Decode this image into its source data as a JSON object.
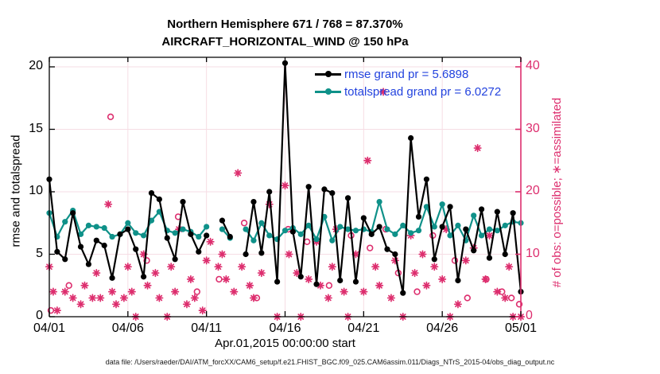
{
  "title": {
    "line1": "Northern Hemisphere 671 / 768 = 87.370%",
    "line2": "AIRCRAFT_HORIZONTAL_WIND @ 150 hPa"
  },
  "legend": {
    "items": [
      {
        "label": "rmse grand pr = 5.6898",
        "series": "rmse"
      },
      {
        "label": "totalspread grand pr = 6.0272",
        "series": "totalspread"
      }
    ]
  },
  "axes": {
    "left": {
      "label": "rmse and totalspread",
      "tick_values": [
        0,
        5,
        10,
        15,
        20
      ]
    },
    "right": {
      "label": "# of obs: o=possible; ∗=assimilated",
      "tick_values": [
        0,
        10,
        20,
        30,
        40
      ]
    },
    "x": {
      "label": "Apr.01,2015 00:00:00 start",
      "tick_days": [
        0,
        5,
        10,
        15,
        20,
        25,
        30
      ],
      "tick_labels": [
        "04/01",
        "04/06",
        "04/11",
        "04/16",
        "04/21",
        "04/26",
        "05/01"
      ]
    }
  },
  "footer": {
    "text": "data file: /Users/raeder/DAI/ATM_forcXX/CAM6_setup/f.e21.FHIST_BGC.f09_025.CAM6assim.011/Diags_NTrS_2015-04/obs_diag_output.nc"
  },
  "colors": {
    "rmse": "#000000",
    "totalspread": "#0f9189",
    "obs": "#dd2e6e",
    "legend_text": "#2343de",
    "grid": "#f6dde4",
    "axis": "#000000"
  },
  "chart_data": {
    "type": "line",
    "x_unit": "days since Apr.01,2015 00:00:00 (half-day sampling)",
    "ylim_left": [
      0,
      20
    ],
    "ylim_right": [
      0,
      40
    ],
    "grid": true,
    "legend_position": "top-center",
    "x_days": [
      0,
      0.5,
      1,
      1.5,
      2,
      2.5,
      3,
      3.5,
      4,
      4.5,
      5,
      5.5,
      6,
      6.5,
      7,
      7.5,
      8,
      8.5,
      9,
      9.5,
      10,
      10.5,
      11,
      11.5,
      12,
      12.5,
      13,
      13.5,
      14,
      14.5,
      15,
      15.5,
      16,
      16.5,
      17,
      17.5,
      18,
      18.5,
      19,
      19.5,
      20,
      20.5,
      21,
      21.5,
      22,
      22.5,
      23,
      23.5,
      24,
      24.5,
      25,
      25.5,
      26,
      26.5,
      27,
      27.5,
      28,
      28.5,
      29,
      29.5,
      30
    ],
    "series": [
      {
        "name": "rmse",
        "grand_value": 5.6898,
        "color": "#000000",
        "values": [
          11.0,
          5.2,
          4.6,
          8.3,
          5.6,
          4.2,
          6.1,
          5.7,
          3.1,
          6.6,
          7.0,
          5.4,
          3.2,
          9.9,
          9.4,
          6.3,
          4.6,
          9.2,
          6.6,
          5.2,
          6.5,
          null,
          7.7,
          6.4,
          null,
          5.0,
          9.2,
          5.1,
          10.0,
          2.8,
          20.3,
          6.8,
          3.2,
          10.4,
          2.6,
          10.2,
          9.9,
          2.9,
          9.5,
          2.8,
          7.9,
          6.6,
          7.2,
          5.4,
          5.0,
          1.9,
          14.3,
          8.0,
          11.0,
          4.6,
          7.2,
          8.8,
          2.9,
          7.0,
          5.3,
          8.6,
          4.7,
          8.4,
          5.0,
          8.3,
          2.0
        ]
      },
      {
        "name": "totalspread",
        "grand_value": 6.0272,
        "color": "#0f9189",
        "values": [
          8.3,
          6.4,
          7.6,
          8.5,
          6.6,
          7.3,
          7.2,
          7.1,
          6.4,
          6.6,
          7.5,
          6.7,
          6.5,
          7.7,
          8.4,
          6.9,
          6.7,
          7.0,
          6.8,
          6.4,
          7.2,
          null,
          7.0,
          6.3,
          null,
          7.0,
          6.1,
          7.5,
          6.5,
          6.2,
          6.9,
          7.1,
          6.6,
          7.3,
          6.2,
          8.0,
          6.1,
          7.2,
          7.0,
          6.9,
          7.0,
          6.8,
          9.2,
          7.0,
          6.6,
          7.3,
          6.7,
          6.9,
          8.8,
          7.2,
          9.0,
          6.5,
          7.3,
          6.1,
          8.1,
          6.5,
          7.0,
          6.9,
          7.3,
          7.6,
          7.5
        ]
      }
    ],
    "scatter": [
      {
        "name": "assimilated_obs_count",
        "marker": "asterisk",
        "color": "#dd2e6e",
        "axis": "right",
        "points": [
          [
            0.0,
            8
          ],
          [
            0.25,
            4
          ],
          [
            0.5,
            1
          ],
          [
            1.0,
            4
          ],
          [
            1.5,
            3
          ],
          [
            2.0,
            2
          ],
          [
            2.25,
            5
          ],
          [
            2.75,
            3
          ],
          [
            3.0,
            7
          ],
          [
            3.25,
            3
          ],
          [
            3.75,
            18
          ],
          [
            4.0,
            4
          ],
          [
            4.25,
            2
          ],
          [
            4.75,
            3
          ],
          [
            5.0,
            8
          ],
          [
            5.25,
            4
          ],
          [
            5.5,
            0
          ],
          [
            6.0,
            10
          ],
          [
            6.25,
            5
          ],
          [
            6.75,
            7
          ],
          [
            7.0,
            3
          ],
          [
            7.5,
            0
          ],
          [
            7.75,
            8
          ],
          [
            8.0,
            4
          ],
          [
            8.25,
            14
          ],
          [
            8.75,
            2
          ],
          [
            9.0,
            6
          ],
          [
            9.25,
            3
          ],
          [
            9.75,
            1
          ],
          [
            10.0,
            9
          ],
          [
            10.25,
            12
          ],
          [
            10.75,
            8
          ],
          [
            11.0,
            10
          ],
          [
            11.25,
            6
          ],
          [
            11.75,
            4
          ],
          [
            12.0,
            23
          ],
          [
            12.25,
            8
          ],
          [
            12.75,
            5
          ],
          [
            13.0,
            3
          ],
          [
            13.5,
            7
          ],
          [
            14.0,
            18
          ],
          [
            14.5,
            0
          ],
          [
            15.0,
            21
          ],
          [
            15.25,
            10
          ],
          [
            15.75,
            7
          ],
          [
            16.0,
            0
          ],
          [
            16.5,
            6
          ],
          [
            17.0,
            12
          ],
          [
            17.25,
            5
          ],
          [
            17.75,
            3
          ],
          [
            18.0,
            8
          ],
          [
            18.25,
            14
          ],
          [
            18.75,
            4
          ],
          [
            19.0,
            0
          ],
          [
            19.5,
            10
          ],
          [
            20.0,
            4
          ],
          [
            20.25,
            25
          ],
          [
            20.75,
            8
          ],
          [
            21.0,
            5
          ],
          [
            21.25,
            36
          ],
          [
            21.75,
            3
          ],
          [
            22.0,
            9
          ],
          [
            22.5,
            0
          ],
          [
            23.0,
            13
          ],
          [
            23.25,
            7
          ],
          [
            23.75,
            10
          ],
          [
            24.0,
            5
          ],
          [
            24.5,
            8
          ],
          [
            25.0,
            6
          ],
          [
            25.25,
            14
          ],
          [
            25.5,
            0
          ],
          [
            26.0,
            2
          ],
          [
            26.5,
            9
          ],
          [
            27.0,
            11
          ],
          [
            27.25,
            27
          ],
          [
            27.75,
            6
          ],
          [
            28.0,
            13
          ],
          [
            28.5,
            4
          ],
          [
            29.0,
            3
          ],
          [
            29.25,
            8
          ],
          [
            29.5,
            0
          ],
          [
            30.0,
            0
          ]
        ]
      },
      {
        "name": "possible_obs_count",
        "marker": "open-circle",
        "color": "#dd2e6e",
        "axis": "right",
        "points": [
          [
            0.1,
            1
          ],
          [
            1.25,
            5
          ],
          [
            3.9,
            32
          ],
          [
            6.2,
            9
          ],
          [
            8.2,
            16
          ],
          [
            9.4,
            4
          ],
          [
            10.8,
            6
          ],
          [
            12.4,
            15
          ],
          [
            13.2,
            3
          ],
          [
            15.2,
            14
          ],
          [
            16.4,
            12
          ],
          [
            17.8,
            5
          ],
          [
            19.2,
            13
          ],
          [
            20.4,
            11
          ],
          [
            21.4,
            14
          ],
          [
            22.2,
            7
          ],
          [
            23.4,
            4
          ],
          [
            24.4,
            13
          ],
          [
            25.8,
            9
          ],
          [
            26.6,
            3
          ],
          [
            27.8,
            6
          ],
          [
            28.8,
            4
          ],
          [
            29.4,
            3
          ],
          [
            29.9,
            2
          ]
        ]
      }
    ]
  }
}
